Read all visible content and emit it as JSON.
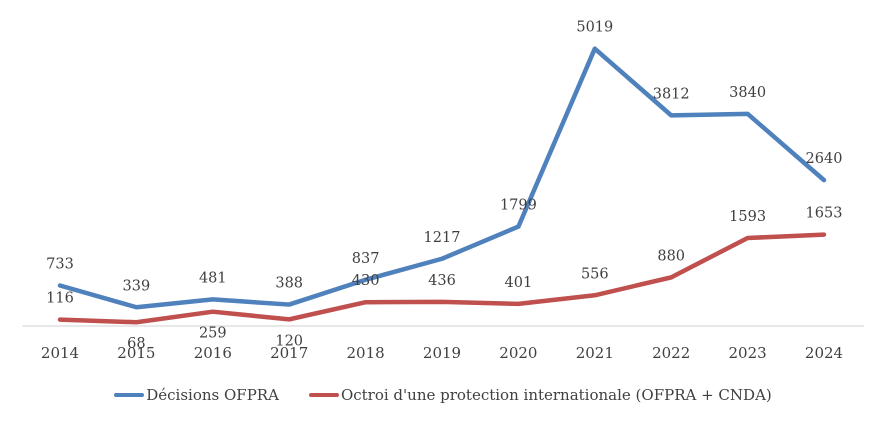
{
  "chart_data": {
    "type": "line",
    "title": "",
    "xlabel": "",
    "ylabel": "",
    "x": [
      "2014",
      "2015",
      "2016",
      "2017",
      "2018",
      "2019",
      "2020",
      "2021",
      "2022",
      "2023",
      "2024"
    ],
    "ylim": [
      0,
      5900
    ],
    "grid": false,
    "legend_position": "bottom",
    "series": [
      {
        "name": "Décisions OFPRA",
        "color": "#4f81bd",
        "values": [
          733,
          339,
          481,
          388,
          837,
          1217,
          1799,
          5019,
          3812,
          3840,
          2640
        ],
        "label_position": [
          "above",
          "above",
          "above",
          "above",
          "above",
          "above",
          "above",
          "above",
          "above",
          "above",
          "above"
        ]
      },
      {
        "name": "Octroi d'une protection internationale (OFPRA + CNDA)",
        "color": "#c0504d",
        "values": [
          116,
          68,
          259,
          120,
          430,
          436,
          401,
          556,
          880,
          1593,
          1653
        ],
        "label_position": [
          "above",
          "below",
          "below",
          "below",
          "above",
          "above",
          "above",
          "above",
          "above",
          "above",
          "above"
        ]
      }
    ]
  }
}
